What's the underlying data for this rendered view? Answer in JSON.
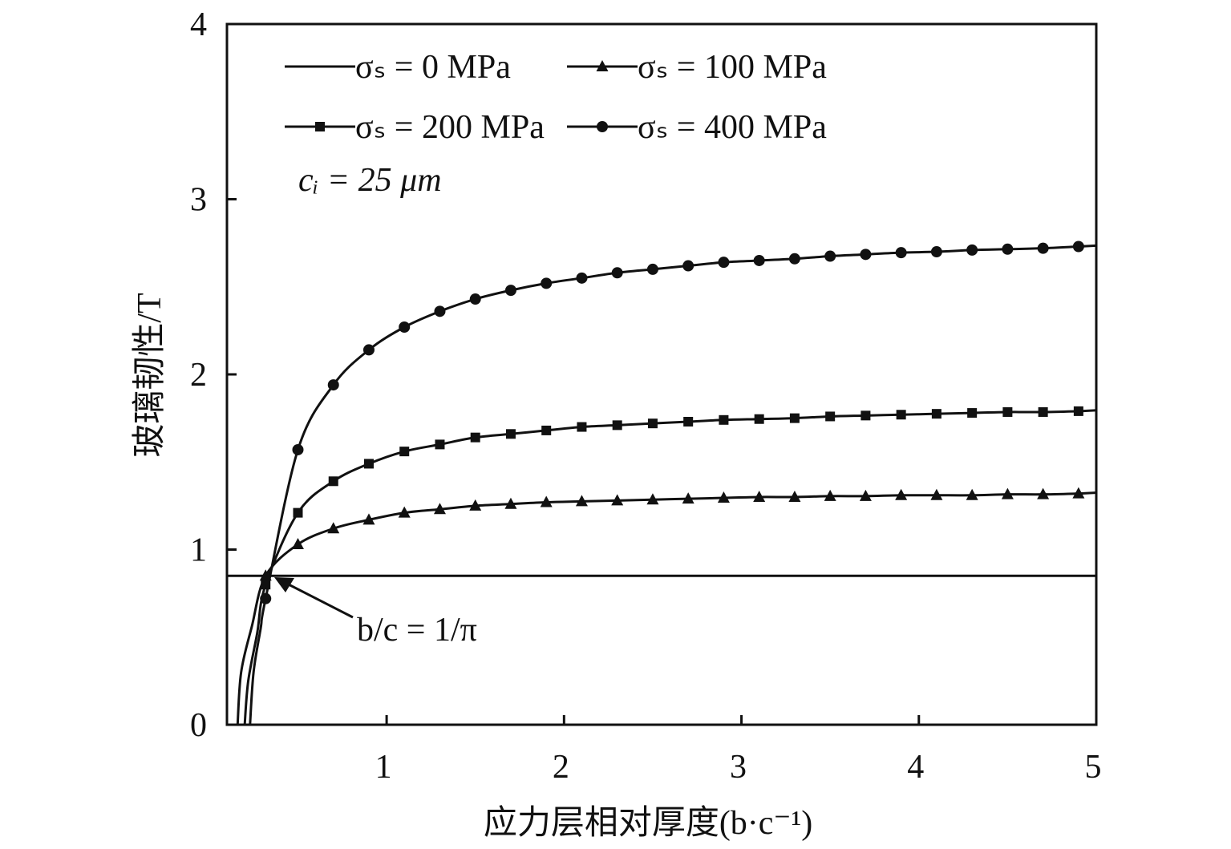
{
  "chart_data": {
    "type": "line",
    "xlabel": "应力层相对厚度(b·c⁻¹)",
    "ylabel": "玻璃韧性/T",
    "xlim": [
      0.1,
      5
    ],
    "ylim": [
      0,
      4
    ],
    "x_ticks": [
      "1",
      "2",
      "3",
      "4",
      "5"
    ],
    "y_ticks": [
      "0",
      "1",
      "2",
      "3",
      "4"
    ],
    "grid": false,
    "legend_position": "top-left",
    "annotations": [
      {
        "text": "cᵢ = 25 μm"
      },
      {
        "text": "b/c = 1/π",
        "points_to": [
          0.318,
          0.85
        ]
      }
    ],
    "series": [
      {
        "name": "σₛ = 0 MPa",
        "marker": "none",
        "x": [
          0.318,
          5.0
        ],
        "y": [
          0.85,
          0.85
        ]
      },
      {
        "name": "σₛ = 100 MPa",
        "marker": "triangle",
        "x": [
          0.318,
          0.5,
          0.7,
          0.9,
          1.1,
          1.3,
          1.5,
          1.7,
          1.9,
          2.1,
          2.3,
          2.5,
          2.7,
          2.9,
          3.1,
          3.3,
          3.5,
          3.7,
          3.9,
          4.1,
          4.3,
          4.5,
          4.7,
          4.9
        ],
        "y": [
          0.85,
          1.03,
          1.12,
          1.17,
          1.21,
          1.23,
          1.25,
          1.26,
          1.27,
          1.275,
          1.28,
          1.285,
          1.29,
          1.295,
          1.3,
          1.3,
          1.305,
          1.305,
          1.31,
          1.31,
          1.31,
          1.315,
          1.315,
          1.32
        ]
      },
      {
        "name": "σₛ = 200 MPa",
        "marker": "square",
        "x": [
          0.318,
          0.5,
          0.7,
          0.9,
          1.1,
          1.3,
          1.5,
          1.7,
          1.9,
          2.1,
          2.3,
          2.5,
          2.7,
          2.9,
          3.1,
          3.3,
          3.5,
          3.7,
          3.9,
          4.1,
          4.3,
          4.5,
          4.7,
          4.9
        ],
        "y": [
          0.8,
          1.21,
          1.39,
          1.49,
          1.56,
          1.6,
          1.64,
          1.66,
          1.68,
          1.7,
          1.71,
          1.72,
          1.73,
          1.74,
          1.745,
          1.75,
          1.76,
          1.765,
          1.77,
          1.775,
          1.78,
          1.785,
          1.785,
          1.79
        ]
      },
      {
        "name": "σₛ = 400 MPa",
        "marker": "circle",
        "x": [
          0.318,
          0.5,
          0.7,
          0.9,
          1.1,
          1.3,
          1.5,
          1.7,
          1.9,
          2.1,
          2.3,
          2.5,
          2.7,
          2.9,
          3.1,
          3.3,
          3.5,
          3.7,
          3.9,
          4.1,
          4.3,
          4.5,
          4.7,
          4.9
        ],
        "y": [
          0.72,
          1.57,
          1.94,
          2.14,
          2.27,
          2.36,
          2.43,
          2.48,
          2.52,
          2.55,
          2.58,
          2.6,
          2.62,
          2.64,
          2.65,
          2.66,
          2.675,
          2.685,
          2.695,
          2.7,
          2.71,
          2.715,
          2.72,
          2.73
        ]
      }
    ]
  }
}
